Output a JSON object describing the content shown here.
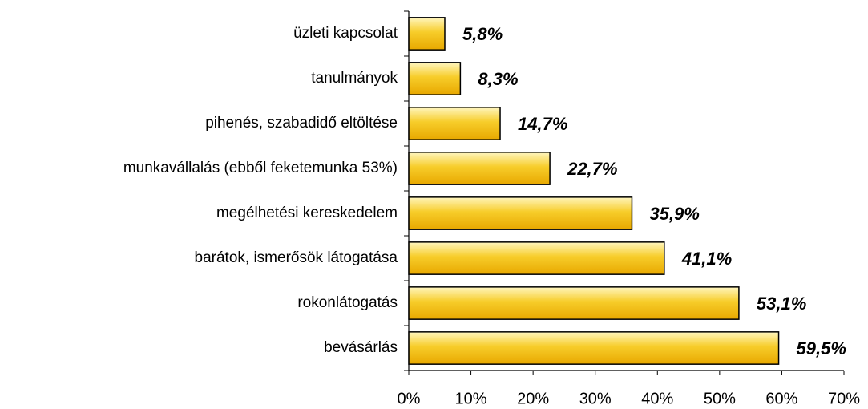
{
  "chart_data": {
    "type": "bar",
    "orientation": "horizontal",
    "categories": [
      "üzleti kapcsolat",
      "tanulmányok",
      "pihenés, szabadidő eltöltése",
      "munkavállalás (ebből feketemunka 53%)",
      "megélhetési kereskedelem",
      "barátok, ismerősök látogatása",
      "rokonlátogatás",
      "bevásárlás"
    ],
    "values": [
      5.8,
      8.3,
      14.7,
      22.7,
      35.9,
      41.1,
      53.1,
      59.5
    ],
    "value_labels": [
      "5,8%",
      "8,3%",
      "14,7%",
      "22,7%",
      "35,9%",
      "41,1%",
      "53,1%",
      "59,5%"
    ],
    "color": "#f5c400",
    "xlim": [
      0,
      70
    ],
    "xticks": [
      {
        "value": 0,
        "label": "0%"
      },
      {
        "value": 10,
        "label": "10%"
      },
      {
        "value": 20,
        "label": "20%"
      },
      {
        "value": 30,
        "label": "30%"
      },
      {
        "value": 40,
        "label": "40%"
      },
      {
        "value": 50,
        "label": "50%"
      },
      {
        "value": 60,
        "label": "60%"
      },
      {
        "value": 70,
        "label": "70%"
      }
    ],
    "grid": false
  }
}
